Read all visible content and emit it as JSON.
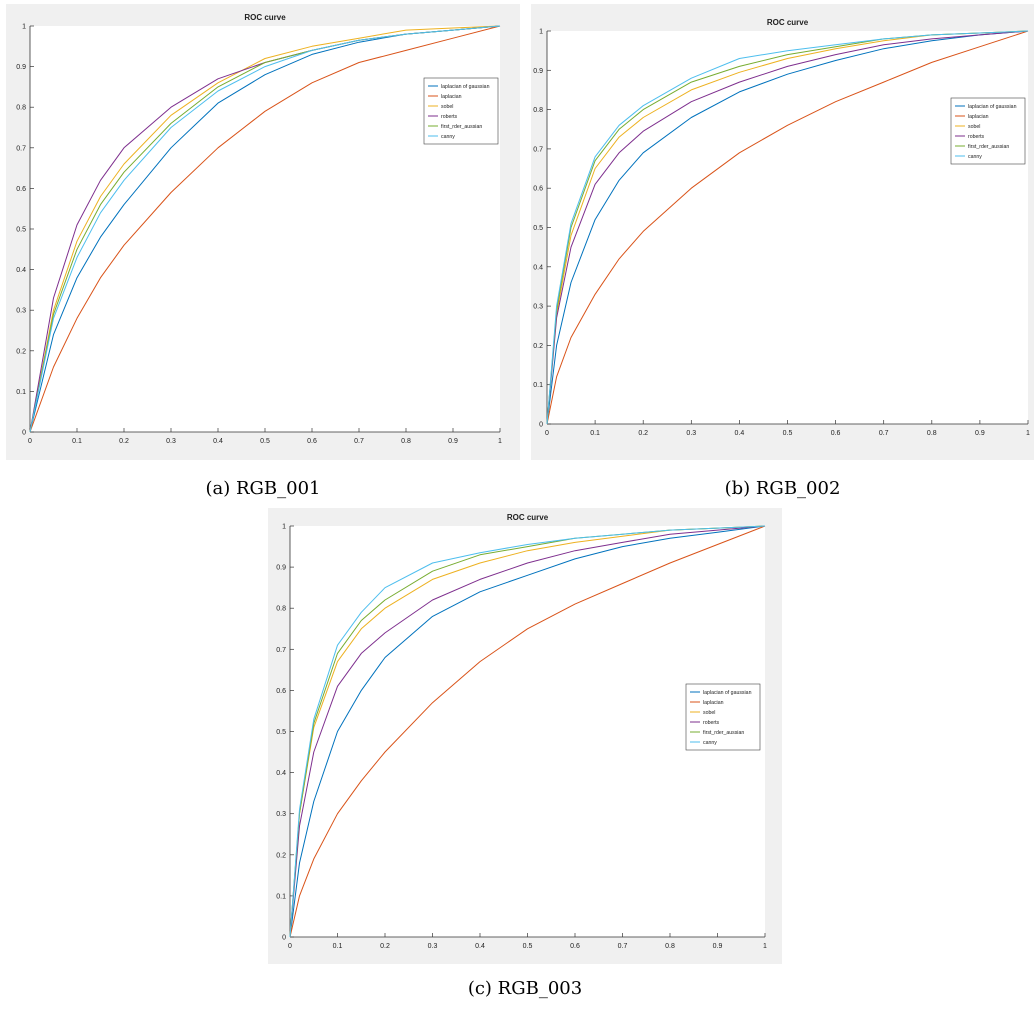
{
  "figure": {
    "captions": [
      "(a) RGB_001",
      "(b) RGB_002",
      "(c) RGB_003"
    ]
  },
  "chart_data": [
    {
      "type": "line",
      "title": "ROC curve",
      "xlabel": "",
      "ylabel": "",
      "xlim": [
        0,
        1
      ],
      "ylim": [
        0,
        1
      ],
      "x_ticks": [
        "0",
        "0.1",
        "0.2",
        "0.3",
        "0.4",
        "0.5",
        "0.6",
        "0.7",
        "0.8",
        "0.9",
        "1"
      ],
      "y_ticks": [
        "0",
        "0.1",
        "0.2",
        "0.3",
        "0.4",
        "0.5",
        "0.6",
        "0.7",
        "0.8",
        "0.9",
        "1"
      ],
      "grid": false,
      "legend_position": "right",
      "series": [
        {
          "name": "laplacian of gaussian",
          "color": "#0072bd",
          "x": [
            0,
            0.05,
            0.1,
            0.15,
            0.2,
            0.3,
            0.4,
            0.5,
            0.6,
            0.7,
            0.8,
            0.9,
            1.0
          ],
          "y": [
            0,
            0.24,
            0.38,
            0.48,
            0.56,
            0.7,
            0.81,
            0.88,
            0.93,
            0.96,
            0.98,
            0.99,
            1.0
          ]
        },
        {
          "name": "laplacian",
          "color": "#d95319",
          "x": [
            0,
            0.05,
            0.1,
            0.15,
            0.2,
            0.3,
            0.4,
            0.5,
            0.6,
            0.7,
            0.8,
            0.9,
            1.0
          ],
          "y": [
            0,
            0.16,
            0.28,
            0.38,
            0.46,
            0.59,
            0.7,
            0.79,
            0.86,
            0.91,
            0.94,
            0.97,
            1.0
          ]
        },
        {
          "name": "sobel",
          "color": "#edb120",
          "x": [
            0,
            0.05,
            0.1,
            0.15,
            0.2,
            0.3,
            0.4,
            0.5,
            0.6,
            0.7,
            0.8,
            0.9,
            1.0
          ],
          "y": [
            0,
            0.3,
            0.47,
            0.58,
            0.66,
            0.78,
            0.86,
            0.92,
            0.95,
            0.97,
            0.99,
            0.995,
            1.0
          ]
        },
        {
          "name": "roberts",
          "color": "#7e2f8e",
          "x": [
            0,
            0.05,
            0.1,
            0.15,
            0.2,
            0.3,
            0.4,
            0.5,
            0.6,
            0.7,
            0.8,
            0.9,
            1.0
          ],
          "y": [
            0,
            0.33,
            0.51,
            0.62,
            0.7,
            0.8,
            0.87,
            0.91,
            0.94,
            0.965,
            0.98,
            0.99,
            1.0
          ]
        },
        {
          "name": "first_rder_aussian",
          "color": "#77ac30",
          "x": [
            0,
            0.05,
            0.1,
            0.15,
            0.2,
            0.3,
            0.4,
            0.5,
            0.6,
            0.7,
            0.8,
            0.9,
            1.0
          ],
          "y": [
            0,
            0.29,
            0.45,
            0.56,
            0.64,
            0.76,
            0.85,
            0.91,
            0.94,
            0.965,
            0.98,
            0.99,
            1.0
          ]
        },
        {
          "name": "canny",
          "color": "#4dbeee",
          "x": [
            0,
            0.05,
            0.1,
            0.15,
            0.2,
            0.3,
            0.4,
            0.5,
            0.6,
            0.7,
            0.8,
            0.9,
            1.0
          ],
          "y": [
            0,
            0.28,
            0.43,
            0.54,
            0.62,
            0.75,
            0.84,
            0.9,
            0.94,
            0.965,
            0.98,
            0.99,
            1.0
          ]
        }
      ]
    },
    {
      "type": "line",
      "title": "ROC curve",
      "xlabel": "",
      "ylabel": "",
      "xlim": [
        0,
        1
      ],
      "ylim": [
        0,
        1
      ],
      "x_ticks": [
        "0",
        "0.1",
        "0.2",
        "0.3",
        "0.4",
        "0.5",
        "0.6",
        "0.7",
        "0.8",
        "0.9",
        "1"
      ],
      "y_ticks": [
        "0",
        "0.1",
        "0.2",
        "0.3",
        "0.4",
        "0.5",
        "0.6",
        "0.7",
        "0.8",
        "0.9",
        "1"
      ],
      "grid": false,
      "legend_position": "right",
      "series": [
        {
          "name": "laplacian of gaussian",
          "color": "#0072bd",
          "x": [
            0,
            0.02,
            0.05,
            0.1,
            0.15,
            0.2,
            0.3,
            0.4,
            0.5,
            0.6,
            0.7,
            0.8,
            0.9,
            1.0
          ],
          "y": [
            0,
            0.2,
            0.36,
            0.52,
            0.62,
            0.69,
            0.78,
            0.845,
            0.89,
            0.925,
            0.955,
            0.975,
            0.99,
            1.0
          ]
        },
        {
          "name": "laplacian",
          "color": "#d95319",
          "x": [
            0,
            0.02,
            0.05,
            0.1,
            0.15,
            0.2,
            0.3,
            0.4,
            0.5,
            0.6,
            0.7,
            0.8,
            0.9,
            1.0
          ],
          "y": [
            0,
            0.12,
            0.22,
            0.33,
            0.42,
            0.49,
            0.6,
            0.69,
            0.76,
            0.82,
            0.87,
            0.92,
            0.96,
            1.0
          ]
        },
        {
          "name": "sobel",
          "color": "#edb120",
          "x": [
            0,
            0.02,
            0.05,
            0.1,
            0.15,
            0.2,
            0.3,
            0.4,
            0.5,
            0.6,
            0.7,
            0.8,
            0.9,
            1.0
          ],
          "y": [
            0,
            0.28,
            0.48,
            0.65,
            0.73,
            0.78,
            0.85,
            0.895,
            0.93,
            0.955,
            0.975,
            0.99,
            0.995,
            1.0
          ]
        },
        {
          "name": "roberts",
          "color": "#7e2f8e",
          "x": [
            0,
            0.02,
            0.05,
            0.1,
            0.15,
            0.2,
            0.3,
            0.4,
            0.5,
            0.6,
            0.7,
            0.8,
            0.9,
            1.0
          ],
          "y": [
            0,
            0.27,
            0.45,
            0.61,
            0.69,
            0.745,
            0.82,
            0.87,
            0.91,
            0.94,
            0.965,
            0.98,
            0.99,
            1.0
          ]
        },
        {
          "name": "first_rder_aussian",
          "color": "#77ac30",
          "x": [
            0,
            0.02,
            0.05,
            0.1,
            0.15,
            0.2,
            0.3,
            0.4,
            0.5,
            0.6,
            0.7,
            0.8,
            0.9,
            1.0
          ],
          "y": [
            0,
            0.29,
            0.5,
            0.67,
            0.75,
            0.8,
            0.87,
            0.91,
            0.94,
            0.96,
            0.98,
            0.99,
            0.995,
            1.0
          ]
        },
        {
          "name": "canny",
          "color": "#4dbeee",
          "x": [
            0,
            0.02,
            0.05,
            0.1,
            0.15,
            0.2,
            0.3,
            0.4,
            0.5,
            0.6,
            0.7,
            0.8,
            0.9,
            1.0
          ],
          "y": [
            0,
            0.3,
            0.51,
            0.68,
            0.76,
            0.81,
            0.88,
            0.93,
            0.95,
            0.965,
            0.98,
            0.99,
            0.995,
            1.0
          ]
        }
      ]
    },
    {
      "type": "line",
      "title": "ROC curve",
      "xlabel": "",
      "ylabel": "",
      "xlim": [
        0,
        1
      ],
      "ylim": [
        0,
        1
      ],
      "x_ticks": [
        "0",
        "0.1",
        "0.2",
        "0.3",
        "0.4",
        "0.5",
        "0.6",
        "0.7",
        "0.8",
        "0.9",
        "1"
      ],
      "y_ticks": [
        "0",
        "0.1",
        "0.2",
        "0.3",
        "0.4",
        "0.5",
        "0.6",
        "0.7",
        "0.8",
        "0.9",
        "1"
      ],
      "grid": false,
      "legend_position": "right",
      "series": [
        {
          "name": "laplacian of gaussian",
          "color": "#0072bd",
          "x": [
            0,
            0.02,
            0.05,
            0.1,
            0.15,
            0.2,
            0.3,
            0.4,
            0.5,
            0.6,
            0.7,
            0.8,
            0.9,
            1.0
          ],
          "y": [
            0,
            0.18,
            0.33,
            0.5,
            0.6,
            0.68,
            0.78,
            0.84,
            0.88,
            0.92,
            0.95,
            0.97,
            0.985,
            1.0
          ]
        },
        {
          "name": "laplacian",
          "color": "#d95319",
          "x": [
            0,
            0.02,
            0.05,
            0.1,
            0.15,
            0.2,
            0.3,
            0.4,
            0.5,
            0.6,
            0.7,
            0.8,
            0.9,
            1.0
          ],
          "y": [
            0,
            0.1,
            0.19,
            0.3,
            0.38,
            0.45,
            0.57,
            0.67,
            0.75,
            0.81,
            0.86,
            0.91,
            0.955,
            1.0
          ]
        },
        {
          "name": "sobel",
          "color": "#edb120",
          "x": [
            0,
            0.02,
            0.05,
            0.1,
            0.15,
            0.2,
            0.3,
            0.4,
            0.5,
            0.6,
            0.7,
            0.8,
            0.9,
            1.0
          ],
          "y": [
            0,
            0.3,
            0.51,
            0.67,
            0.75,
            0.8,
            0.87,
            0.91,
            0.94,
            0.96,
            0.975,
            0.99,
            0.995,
            1.0
          ]
        },
        {
          "name": "roberts",
          "color": "#7e2f8e",
          "x": [
            0,
            0.02,
            0.05,
            0.1,
            0.15,
            0.2,
            0.3,
            0.4,
            0.5,
            0.6,
            0.7,
            0.8,
            0.9,
            1.0
          ],
          "y": [
            0,
            0.27,
            0.45,
            0.61,
            0.69,
            0.74,
            0.82,
            0.87,
            0.91,
            0.94,
            0.96,
            0.98,
            0.99,
            1.0
          ]
        },
        {
          "name": "first_rder_aussian",
          "color": "#77ac30",
          "x": [
            0,
            0.02,
            0.05,
            0.1,
            0.15,
            0.2,
            0.3,
            0.4,
            0.5,
            0.6,
            0.7,
            0.8,
            0.9,
            1.0
          ],
          "y": [
            0,
            0.3,
            0.52,
            0.69,
            0.77,
            0.82,
            0.89,
            0.93,
            0.95,
            0.97,
            0.98,
            0.99,
            0.995,
            1.0
          ]
        },
        {
          "name": "canny",
          "color": "#4dbeee",
          "x": [
            0,
            0.02,
            0.05,
            0.1,
            0.15,
            0.2,
            0.3,
            0.4,
            0.5,
            0.6,
            0.7,
            0.8,
            0.9,
            1.0
          ],
          "y": [
            0,
            0.31,
            0.53,
            0.71,
            0.79,
            0.85,
            0.91,
            0.935,
            0.955,
            0.97,
            0.98,
            0.99,
            0.995,
            1.0
          ]
        }
      ]
    }
  ]
}
